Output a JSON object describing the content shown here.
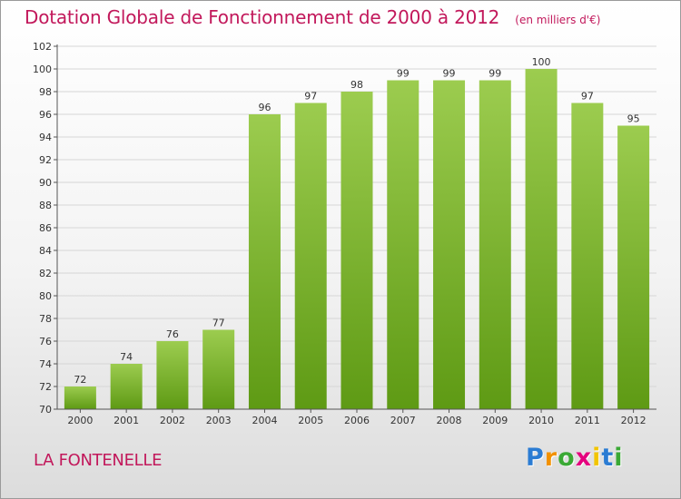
{
  "chart_data": {
    "type": "bar",
    "title": "Dotation Globale de Fonctionnement de 2000 à 2012",
    "subtitle": "(en milliers d'€)",
    "categories": [
      "2000",
      "2001",
      "2002",
      "2003",
      "2004",
      "2005",
      "2006",
      "2007",
      "2008",
      "2009",
      "2010",
      "2011",
      "2012"
    ],
    "values": [
      72,
      74,
      76,
      77,
      96,
      97,
      98,
      99,
      99,
      99,
      100,
      97,
      95
    ],
    "ylim": [
      70,
      102
    ],
    "yticks": [
      70,
      72,
      74,
      76,
      78,
      80,
      82,
      84,
      86,
      88,
      90,
      92,
      94,
      96,
      98,
      100,
      102
    ],
    "xlabel": "",
    "ylabel": "",
    "grid": "horizontal",
    "legend": "none",
    "bar_color_top": "#9ccc4f",
    "bar_color_bottom": "#5e9a14"
  },
  "commune": "LA FONTENELLE",
  "logo": {
    "letters": [
      "P",
      "r",
      "o",
      "x",
      "i",
      "t",
      "i"
    ],
    "colors": [
      "#2b7cd3",
      "#f29100",
      "#3aa935",
      "#e5007e",
      "#f2c500",
      "#2b7cd3",
      "#3aa935"
    ]
  }
}
